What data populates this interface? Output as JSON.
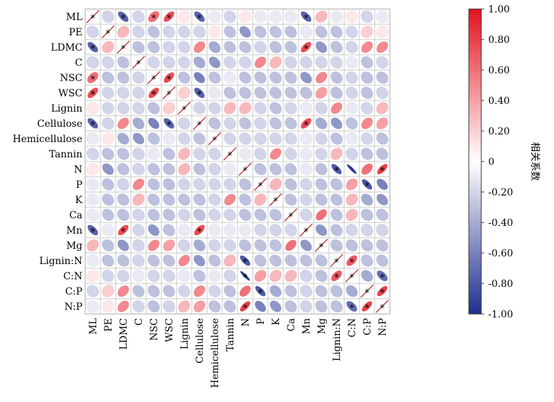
{
  "chart_data": {
    "type": "heatmap",
    "subtype": "correlation-ellipse-matrix",
    "variables": [
      "ML",
      "PE",
      "LDMC",
      "C",
      "NSC",
      "WSC",
      "Lignin",
      "Cellulose",
      "Hemicellulose",
      "Tannin",
      "N",
      "P",
      "K",
      "Ca",
      "Mn",
      "Mg",
      "Lignin:N",
      "C:N",
      "C:P",
      "N:P"
    ],
    "values": [
      [
        1,
        -0.2,
        -0.75,
        -0.2,
        0.6,
        0.75,
        0.1,
        -0.75,
        -0.1,
        -0.2,
        0.1,
        -0.1,
        -0.1,
        -0.1,
        -0.75,
        0.3,
        -0.1,
        0.1,
        -0.2,
        -0.1
      ],
      [
        -0.2,
        1,
        0.3,
        -0.2,
        -0.3,
        -0.2,
        -0.2,
        -0.2,
        0.1,
        -0.3,
        -0.5,
        -0.3,
        -0.3,
        -0.3,
        -0.1,
        -0.3,
        -0.3,
        -0.2,
        0.2,
        0.1
      ],
      [
        -0.75,
        0.3,
        1,
        -0.3,
        -0.3,
        -0.2,
        -0.2,
        0.5,
        -0.4,
        -0.3,
        -0.3,
        -0.2,
        -0.3,
        -0.3,
        0.75,
        -0.5,
        -0.3,
        -0.2,
        0.5,
        0.5
      ],
      [
        -0.2,
        -0.2,
        -0.3,
        1,
        -0.2,
        -0.2,
        -0.2,
        -0.4,
        -0.5,
        -0.2,
        -0.2,
        0.5,
        0.3,
        -0.2,
        -0.2,
        -0.2,
        -0.2,
        -0.1,
        -0.3,
        -0.2
      ],
      [
        0.6,
        -0.3,
        -0.3,
        -0.2,
        1,
        0.75,
        -0.3,
        -0.6,
        -0.3,
        -0.1,
        -0.3,
        -0.3,
        -0.3,
        -0.3,
        -0.5,
        0.5,
        -0.3,
        -0.2,
        -0.3,
        -0.3
      ],
      [
        0.75,
        -0.2,
        -0.2,
        -0.2,
        0.75,
        1,
        0.2,
        -0.75,
        -0.1,
        -0.3,
        -0.3,
        -0.3,
        -0.3,
        -0.3,
        -0.3,
        0.4,
        -0.3,
        -0.2,
        -0.3,
        -0.2
      ],
      [
        0.1,
        -0.2,
        -0.2,
        -0.2,
        -0.3,
        0.2,
        1,
        -0.2,
        -0.2,
        0.3,
        0.3,
        -0.2,
        -0.3,
        -0.2,
        -0.1,
        -0.2,
        0.5,
        -0.1,
        -0.2,
        0.3
      ],
      [
        -0.75,
        -0.2,
        0.5,
        -0.4,
        -0.6,
        -0.75,
        -0.2,
        1,
        -0.3,
        -0.2,
        -0.3,
        -0.2,
        -0.3,
        -0.3,
        0.75,
        -0.4,
        -0.5,
        -0.3,
        0.5,
        0.4
      ],
      [
        -0.1,
        0.1,
        -0.4,
        -0.5,
        -0.3,
        -0.1,
        -0.2,
        -0.3,
        1,
        -0.2,
        -0.2,
        -0.2,
        -0.2,
        -0.2,
        -0.1,
        -0.2,
        -0.3,
        -0.1,
        -0.2,
        -0.3
      ],
      [
        -0.2,
        -0.3,
        -0.3,
        -0.2,
        -0.1,
        -0.3,
        0.3,
        -0.2,
        -0.2,
        1,
        -0.1,
        -0.2,
        0.5,
        -0.2,
        -0.1,
        -0.2,
        0.3,
        -0.2,
        -0.3,
        -0.3
      ],
      [
        0.1,
        -0.5,
        -0.3,
        -0.2,
        -0.3,
        -0.3,
        0.3,
        -0.3,
        -0.2,
        -0.1,
        1,
        -0.3,
        -0.3,
        -0.3,
        -0.1,
        -0.3,
        -0.8,
        -0.95,
        0.6,
        0.8
      ],
      [
        -0.1,
        -0.3,
        -0.2,
        0.5,
        -0.3,
        -0.3,
        -0.2,
        -0.2,
        -0.2,
        -0.2,
        -0.3,
        1,
        0.3,
        -0.3,
        -0.2,
        -0.3,
        -0.3,
        0.4,
        -0.8,
        -0.6
      ],
      [
        -0.1,
        -0.3,
        -0.3,
        0.3,
        -0.3,
        -0.3,
        -0.3,
        -0.3,
        -0.2,
        0.5,
        -0.3,
        0.3,
        1,
        -0.3,
        -0.2,
        -0.3,
        -0.3,
        0.3,
        -0.4,
        -0.5
      ],
      [
        -0.1,
        -0.3,
        -0.3,
        -0.2,
        -0.3,
        -0.3,
        -0.2,
        -0.3,
        -0.2,
        -0.2,
        -0.3,
        -0.3,
        -0.3,
        1,
        -0.2,
        0.6,
        -0.3,
        0.3,
        -0.3,
        -0.3
      ],
      [
        -0.75,
        -0.1,
        0.75,
        -0.2,
        -0.5,
        -0.3,
        -0.1,
        0.75,
        -0.1,
        -0.1,
        -0.1,
        -0.2,
        -0.2,
        -0.2,
        1,
        -0.5,
        -0.3,
        -0.2,
        -0.2,
        -0.2
      ],
      [
        0.3,
        -0.3,
        -0.5,
        -0.2,
        0.5,
        0.4,
        -0.2,
        -0.4,
        -0.2,
        -0.2,
        -0.3,
        -0.3,
        -0.3,
        0.6,
        -0.5,
        1,
        -0.3,
        -0.3,
        -0.3,
        -0.3
      ],
      [
        -0.1,
        -0.3,
        -0.3,
        -0.2,
        -0.3,
        -0.3,
        0.5,
        -0.5,
        -0.3,
        0.3,
        -0.8,
        -0.3,
        -0.3,
        -0.3,
        -0.3,
        -0.3,
        1,
        0.7,
        -0.3,
        -0.3
      ],
      [
        0.1,
        -0.2,
        -0.2,
        -0.1,
        -0.2,
        -0.2,
        -0.1,
        -0.3,
        -0.1,
        -0.2,
        -0.95,
        0.4,
        0.3,
        0.3,
        -0.2,
        -0.3,
        0.7,
        1,
        -0.4,
        -0.7
      ],
      [
        -0.2,
        0.2,
        0.5,
        -0.3,
        -0.3,
        -0.3,
        -0.2,
        0.5,
        -0.2,
        -0.3,
        0.6,
        -0.8,
        -0.4,
        -0.3,
        -0.2,
        -0.3,
        -0.3,
        -0.4,
        1,
        0.8
      ],
      [
        -0.1,
        0.1,
        0.5,
        -0.2,
        -0.3,
        -0.2,
        0.3,
        0.4,
        -0.3,
        -0.3,
        0.8,
        -0.6,
        -0.5,
        -0.3,
        -0.2,
        -0.3,
        -0.3,
        -0.7,
        0.8,
        1
      ]
    ],
    "significant": [
      [
        0,
        0
      ],
      [
        0,
        2
      ],
      [
        0,
        4
      ],
      [
        0,
        5
      ],
      [
        0,
        7
      ],
      [
        0,
        14
      ],
      [
        1,
        1
      ],
      [
        2,
        0
      ],
      [
        2,
        2
      ],
      [
        2,
        14
      ],
      [
        3,
        3
      ],
      [
        4,
        0
      ],
      [
        4,
        4
      ],
      [
        4,
        5
      ],
      [
        5,
        0
      ],
      [
        5,
        4
      ],
      [
        5,
        5
      ],
      [
        5,
        7
      ],
      [
        6,
        6
      ],
      [
        7,
        0
      ],
      [
        7,
        5
      ],
      [
        7,
        7
      ],
      [
        7,
        14
      ],
      [
        8,
        8
      ],
      [
        9,
        9
      ],
      [
        10,
        10
      ],
      [
        10,
        16
      ],
      [
        10,
        19
      ],
      [
        11,
        11
      ],
      [
        11,
        18
      ],
      [
        12,
        12
      ],
      [
        13,
        13
      ],
      [
        14,
        0
      ],
      [
        14,
        2
      ],
      [
        14,
        7
      ],
      [
        14,
        14
      ],
      [
        15,
        15
      ],
      [
        16,
        10
      ],
      [
        16,
        16
      ],
      [
        16,
        17
      ],
      [
        17,
        10
      ],
      [
        17,
        16
      ],
      [
        17,
        17
      ],
      [
        17,
        19
      ],
      [
        18,
        11
      ],
      [
        18,
        18
      ],
      [
        18,
        19
      ],
      [
        19,
        10
      ],
      [
        19,
        17
      ],
      [
        19,
        18
      ],
      [
        19,
        19
      ]
    ],
    "significance_marker": "*",
    "colorbar": {
      "title": "相关系数",
      "min": -1,
      "max": 1,
      "tick_labels": [
        "1.00",
        "0.80",
        "0.60",
        "0.40",
        "0.20",
        "0",
        "-0.20",
        "-0.40",
        "-0.60",
        "-0.80",
        "-1.00"
      ],
      "tick_values": [
        1,
        0.8,
        0.6,
        0.4,
        0.2,
        0,
        -0.2,
        -0.4,
        -0.6,
        -0.8,
        -1
      ],
      "color_low": "#1f2f8f",
      "color_mid": "#ffffff",
      "color_high": "#e3121e"
    },
    "grid": true
  }
}
